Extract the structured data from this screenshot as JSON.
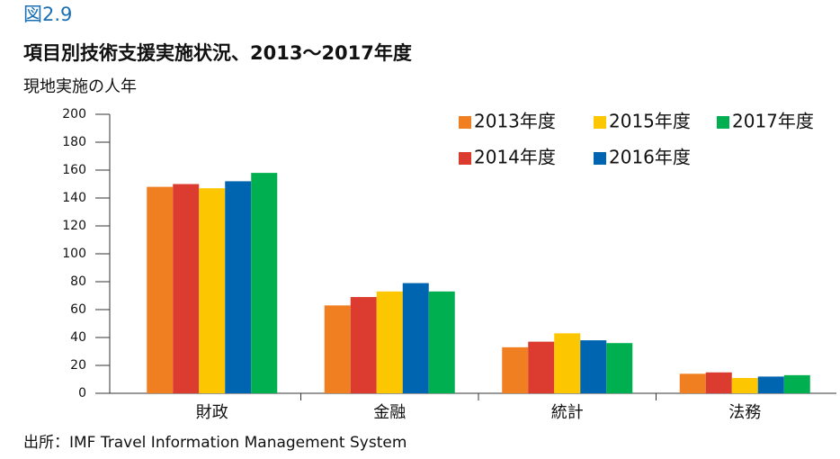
{
  "figure_label": "図2.9",
  "chart_data": {
    "type": "bar",
    "title": "項目別技術支援実施状況、2013～2017年度",
    "subtitle": "現地実施の人年",
    "categories": [
      "財政",
      "金融",
      "統計",
      "法務"
    ],
    "series": [
      {
        "name": "2013年度",
        "color": "#f07f22",
        "values": [
          148,
          63,
          33,
          14
        ]
      },
      {
        "name": "2014年度",
        "color": "#dc3c30",
        "values": [
          150,
          69,
          37,
          15
        ]
      },
      {
        "name": "2015年度",
        "color": "#fcc700",
        "values": [
          147,
          73,
          43,
          11
        ]
      },
      {
        "name": "2016年度",
        "color": "#0065b0",
        "values": [
          152,
          79,
          38,
          12
        ]
      },
      {
        "name": "2017年度",
        "color": "#00b050",
        "values": [
          158,
          73,
          36,
          13
        ]
      }
    ],
    "ylim": [
      0,
      200
    ],
    "yticks": [
      0,
      20,
      40,
      60,
      80,
      100,
      120,
      140,
      160,
      180,
      200
    ],
    "legend": "top-right"
  },
  "source": "出所：IMF Travel Information Management System"
}
